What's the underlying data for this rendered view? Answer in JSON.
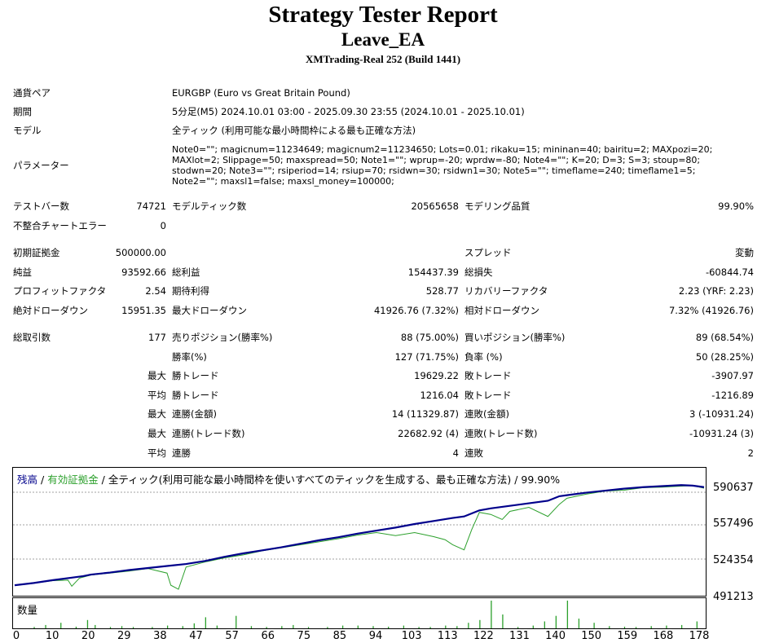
{
  "header": {
    "title": "Strategy Tester Report",
    "ea_name": "Leave_EA",
    "broker": "XMTrading-Real 252 (Build 1441)"
  },
  "info": {
    "pair_label": "通貨ペア",
    "pair_value": "EURGBP (Euro vs Great Britain Pound)",
    "period_label": "期間",
    "period_value": "5分足(M5) 2024.10.01 03:00 - 2025.09.30 23:55 (2024.10.01 - 2025.10.01)",
    "model_label": "モデル",
    "model_value": "全ティック (利用可能な最小時間枠による最も正確な方法)",
    "params_label": "パラメーター",
    "params_value": "Note0=\"\"; magicnum=11234649; magicnum2=11234650; Lots=0.01; rikaku=15; mininan=40; bairitu=2; MAXpozi=20; MAXlot=2; Slippage=50; maxspread=50; Note1=\"\"; wprup=-20; wprdw=-80; Note4=\"\"; K=20; D=3; S=3; stoup=80; stodwn=20; Note3=\"\"; rsiperiod=14; rsiup=70; rsidwn=30; rsidwn1=30; Note5=\"\"; timeflame=240; timeflame1=5; Note2=\"\"; maxsl1=false; maxsl_money=100000;"
  },
  "stats": {
    "bars_label": "テストバー数",
    "bars_value": "74721",
    "ticks_label": "モデルティック数",
    "ticks_value": "20565658",
    "quality_label": "モデリング品質",
    "quality_value": "99.90%",
    "mismatch_label": "不整合チャートエラー",
    "mismatch_value": "0",
    "deposit_label": "初期証拠金",
    "deposit_value": "500000.00",
    "spread_label": "スプレッド",
    "spread_value": "変動",
    "net_label": "純益",
    "net_value": "93592.66",
    "gross_profit_label": "総利益",
    "gross_profit_value": "154437.39",
    "gross_loss_label": "総損失",
    "gross_loss_value": "-60844.74",
    "pf_label": "プロフィットファクタ",
    "pf_value": "2.54",
    "payoff_label": "期待利得",
    "payoff_value": "528.77",
    "recovery_label": "リカバリーファクタ",
    "recovery_value": "2.23 (YRF: 2.23)",
    "abs_dd_label": "絶対ドローダウン",
    "abs_dd_value": "15951.35",
    "max_dd_label": "最大ドローダウン",
    "max_dd_value": "41926.76 (7.32%)",
    "rel_dd_label": "相対ドローダウン",
    "rel_dd_value": "7.32% (41926.76)",
    "trades_label": "総取引数",
    "trades_value": "177",
    "short_label": "売りポジション(勝率%)",
    "short_value": "88 (75.00%)",
    "long_label": "買いポジション(勝率%)",
    "long_value": "89 (68.54%)",
    "win_label": "勝率(%)",
    "win_value": "127 (71.75%)",
    "loss_label": "負率 (%)",
    "loss_value": "50 (28.25%)",
    "max1": "最大",
    "max_win_label": "勝トレード",
    "max_win_value": "19629.22",
    "max_loss_label": "敗トレード",
    "max_loss_value": "-3907.97",
    "avg1": "平均",
    "avg_win_label": "勝トレード",
    "avg_win_value": "1216.04",
    "avg_loss_label": "敗トレード",
    "avg_loss_value": "-1216.89",
    "max2": "最大",
    "cons_win_amt_label": "連勝(金額)",
    "cons_win_amt_value": "14 (11329.87)",
    "cons_loss_amt_label": "連敗(金額)",
    "cons_loss_amt_value": "3 (-10931.24)",
    "max3": "最大",
    "cons_win_cnt_label": "連勝(トレード数)",
    "cons_win_cnt_value": "22682.92 (4)",
    "cons_loss_cnt_label": "連敗(トレード数)",
    "cons_loss_cnt_value": "-10931.24 (3)",
    "avg2": "平均",
    "avg_cons_win_label": "連勝",
    "avg_cons_win_value": "4",
    "avg_cons_loss_label": "連敗",
    "avg_cons_loss_value": "2"
  },
  "chart": {
    "legend_balance": "残高",
    "legend_sep1": " / ",
    "legend_equity": "有効証拠金",
    "legend_sep2": " / ",
    "legend_rest": "全ティック(利用可能な最小時間枠を使いすべてのティックを生成する、最も正確な方法) / 99.90%",
    "volume_title": "数量",
    "colors": {
      "balance": "#00008b",
      "equity": "#2ca02c",
      "volume": "#2ca02c",
      "grid": "#a0a0a0"
    }
  },
  "chart_data": {
    "type": "line",
    "xlim": [
      0,
      181
    ],
    "ylim": [
      491213,
      600000
    ],
    "y_tick_labels": [
      "590637",
      "557496",
      "524354",
      "491213"
    ],
    "x_tick_labels": [
      "0",
      "10",
      "20",
      "29",
      "38",
      "47",
      "57",
      "66",
      "75",
      "85",
      "94",
      "103",
      "113",
      "122",
      "131",
      "140",
      "150",
      "159",
      "168",
      "178"
    ],
    "series": [
      {
        "name": "残高",
        "x": [
          0,
          5,
          10,
          15,
          18,
          20,
          25,
          30,
          35,
          40,
          45,
          50,
          55,
          60,
          65,
          70,
          75,
          80,
          85,
          90,
          95,
          100,
          105,
          110,
          115,
          118,
          120,
          122,
          125,
          130,
          135,
          140,
          143,
          145,
          150,
          155,
          160,
          165,
          170,
          175,
          178,
          181
        ],
        "y": [
          500000,
          502200,
          505000,
          507500,
          509000,
          510500,
          512500,
          515000,
          517000,
          519000,
          521000,
          524000,
          528000,
          531500,
          534500,
          537500,
          541000,
          544500,
          547500,
          551000,
          554000,
          557000,
          560500,
          563500,
          566500,
          568000,
          571000,
          574000,
          576000,
          578500,
          581000,
          583500,
          588000,
          589000,
          591500,
          593500,
          595500,
          597000,
          598000,
          599000,
          598500,
          597000
        ]
      },
      {
        "name": "有効証拠金",
        "x": [
          0,
          5,
          10,
          14,
          15,
          17,
          20,
          25,
          30,
          35,
          40,
          41,
          43,
          45,
          50,
          55,
          60,
          65,
          70,
          75,
          80,
          85,
          90,
          95,
          100,
          105,
          110,
          113,
          115,
          118,
          120,
          122,
          125,
          128,
          130,
          135,
          140,
          143,
          145,
          150,
          155,
          160,
          165,
          170,
          175,
          178,
          181
        ],
        "y": [
          500000,
          502000,
          504500,
          505000,
          499000,
          507000,
          510000,
          512000,
          514000,
          516500,
          512000,
          500000,
          496000,
          518000,
          523000,
          527000,
          530000,
          534000,
          537000,
          540000,
          543000,
          546000,
          549500,
          552000,
          549000,
          552000,
          548000,
          545000,
          540000,
          535000,
          555000,
          572000,
          570000,
          565000,
          573000,
          577000,
          568000,
          580000,
          586000,
          590000,
          593000,
          594000,
          596500,
          597000,
          598000,
          598500,
          596000
        ]
      }
    ],
    "volume": {
      "x": [
        5,
        8,
        12,
        16,
        19,
        21,
        25,
        28,
        31,
        36,
        40,
        44,
        47,
        50,
        53,
        58,
        62,
        66,
        70,
        73,
        77,
        82,
        86,
        90,
        94,
        98,
        102,
        106,
        109,
        113,
        116,
        119,
        122,
        125,
        128,
        132,
        136,
        139,
        142,
        145,
        148,
        152,
        156,
        160,
        163,
        167,
        171,
        175,
        179
      ],
      "y": [
        0.05,
        0.12,
        0.2,
        0.06,
        0.3,
        0.12,
        0.05,
        0.08,
        0.05,
        0.05,
        0.1,
        0.08,
        0.18,
        0.4,
        0.1,
        0.45,
        0.08,
        0.05,
        0.08,
        0.12,
        0.05,
        0.05,
        0.1,
        0.1,
        0.08,
        0.06,
        0.1,
        0.05,
        0.05,
        0.1,
        0.08,
        0.2,
        0.3,
        1.0,
        0.5,
        0.05,
        0.1,
        0.25,
        0.45,
        1.0,
        0.35,
        0.2,
        0.08,
        0.06,
        0.05,
        0.08,
        0.1,
        0.12,
        0.25
      ]
    },
    "grid": true
  }
}
